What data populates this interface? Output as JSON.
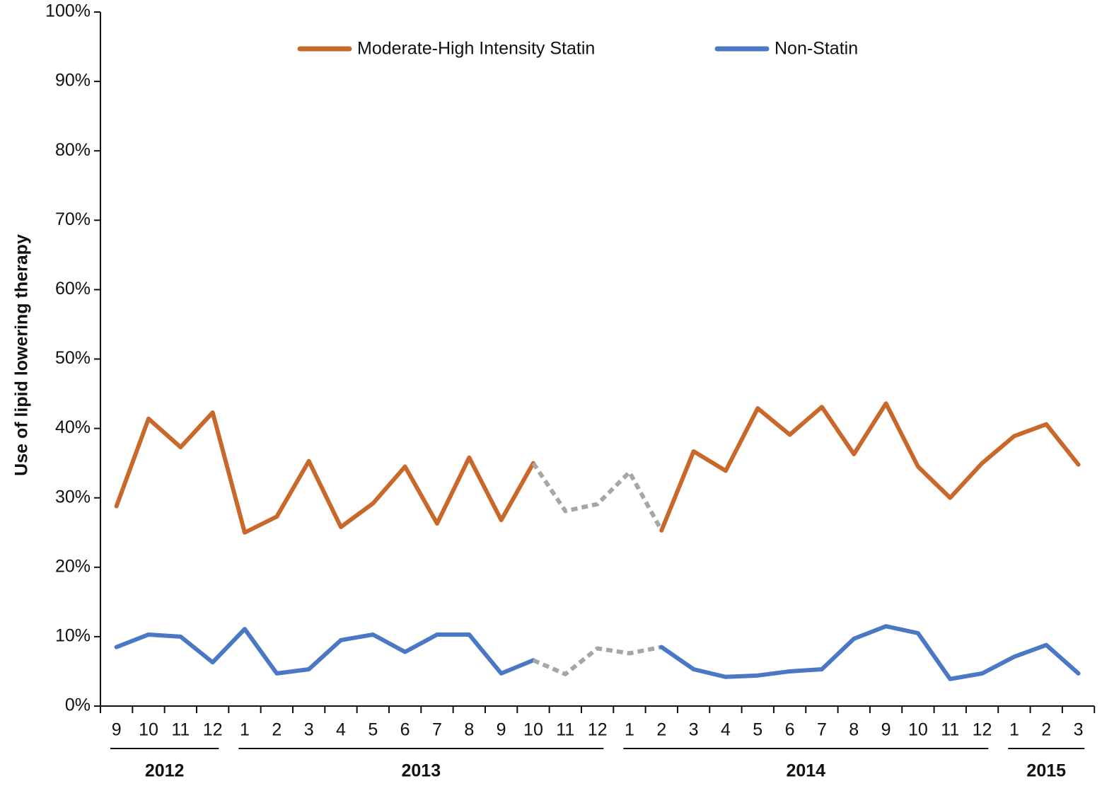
{
  "chart_data": {
    "type": "line",
    "y_label": "Use of lipid lowering therapy",
    "categories": [
      "9",
      "10",
      "11",
      "12",
      "1",
      "2",
      "3",
      "4",
      "5",
      "6",
      "7",
      "8",
      "9",
      "10",
      "11",
      "12",
      "1",
      "2",
      "3",
      "4",
      "5",
      "6",
      "7",
      "8",
      "9",
      "10",
      "11",
      "12",
      "1",
      "2",
      "3"
    ],
    "groups": [
      {
        "label": "2012",
        "from": 0,
        "to": 3
      },
      {
        "label": "2013",
        "from": 4,
        "to": 15
      },
      {
        "label": "2014",
        "from": 16,
        "to": 27
      },
      {
        "label": "2015",
        "from": 28,
        "to": 30
      }
    ],
    "series": [
      {
        "name": "Moderate-High Intensity Statin",
        "color": "#c8692b",
        "values": [
          28.8,
          41.4,
          37.3,
          42.3,
          25.0,
          27.3,
          35.3,
          25.8,
          29.2,
          34.5,
          26.3,
          35.8,
          26.8,
          35.0,
          28.1,
          29.1,
          33.7,
          25.3,
          36.7,
          33.9,
          42.9,
          39.1,
          43.1,
          36.3,
          43.6,
          34.5,
          30.0,
          35.0,
          38.9,
          40.6,
          34.8
        ]
      },
      {
        "name": "Non-Statin",
        "color": "#4a78c4",
        "values": [
          8.5,
          10.3,
          10.0,
          6.3,
          11.1,
          4.7,
          5.3,
          9.5,
          10.3,
          7.8,
          10.3,
          10.3,
          4.7,
          6.6,
          4.6,
          8.3,
          7.6,
          8.5,
          5.3,
          4.2,
          4.4,
          5.0,
          5.3,
          9.7,
          11.5,
          10.5,
          3.9,
          4.7,
          7.1,
          8.8,
          4.7
        ]
      }
    ],
    "dotted_range": {
      "from": 13,
      "to": 17,
      "color": "#a6a6a6"
    },
    "ylim": [
      0,
      100
    ],
    "yticks": [
      {
        "value": 0,
        "label": "0%"
      },
      {
        "value": 10,
        "label": "10%"
      },
      {
        "value": 20,
        "label": "20%"
      },
      {
        "value": 30,
        "label": "30%"
      },
      {
        "value": 40,
        "label": "40%"
      },
      {
        "value": 50,
        "label": "50%"
      },
      {
        "value": 60,
        "label": "60%"
      },
      {
        "value": 70,
        "label": "70%"
      },
      {
        "value": 80,
        "label": "80%"
      },
      {
        "value": 90,
        "label": "90%"
      },
      {
        "value": 100,
        "label": "100%"
      }
    ],
    "legend": "top"
  }
}
